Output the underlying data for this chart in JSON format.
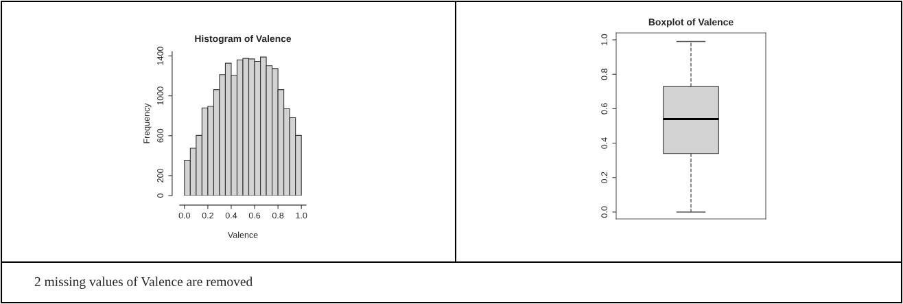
{
  "chart_data": [
    {
      "type": "histogram",
      "title": "Histogram of Valence",
      "xlabel": "Valence",
      "ylabel": "Frequency",
      "bins": [
        0.0,
        0.05,
        0.1,
        0.15,
        0.2,
        0.25,
        0.3,
        0.35,
        0.4,
        0.45,
        0.5,
        0.55,
        0.6,
        0.65,
        0.7,
        0.75,
        0.8,
        0.85,
        0.9,
        0.95,
        1.0
      ],
      "values": [
        354,
        475,
        603,
        879,
        895,
        1062,
        1213,
        1327,
        1208,
        1361,
        1375,
        1370,
        1345,
        1389,
        1302,
        1274,
        1062,
        870,
        781,
        603
      ],
      "color": "#d3d3d3",
      "xlim": [
        -0.04,
        1.04
      ],
      "xticks": [
        {
          "value": 0,
          "label": "0.0"
        },
        {
          "value": 0.2,
          "label": "0.2"
        },
        {
          "value": 0.4,
          "label": "0.4"
        },
        {
          "value": 0.6,
          "label": "0.6"
        },
        {
          "value": 0.8,
          "label": "0.8"
        },
        {
          "value": 1.0,
          "label": "1.0"
        }
      ],
      "ylim": [
        0,
        1445
      ],
      "yticks": [
        0,
        200,
        600,
        1000,
        1400
      ],
      "annotations": [
        "2 missing values of Valence are removed"
      ]
    },
    {
      "type": "box",
      "title": "Boxplot of Valence",
      "categories": [
        null
      ],
      "color": "#d3d3d3",
      "boxes": [
        {
          "low": 0.0,
          "q1": 0.34,
          "median": 0.54,
          "q3": 0.728,
          "high": 0.99
        }
      ],
      "ylim": [
        -0.04,
        1.04
      ],
      "yticks": [
        {
          "value": 0,
          "label": "0.0"
        },
        {
          "value": 0.2,
          "label": "0.2"
        },
        {
          "value": 0.4,
          "label": "0.4"
        },
        {
          "value": 0.6,
          "label": "0.6"
        },
        {
          "value": 0.8,
          "label": "0.8"
        },
        {
          "value": 1.0,
          "label": "1.0"
        }
      ]
    }
  ]
}
